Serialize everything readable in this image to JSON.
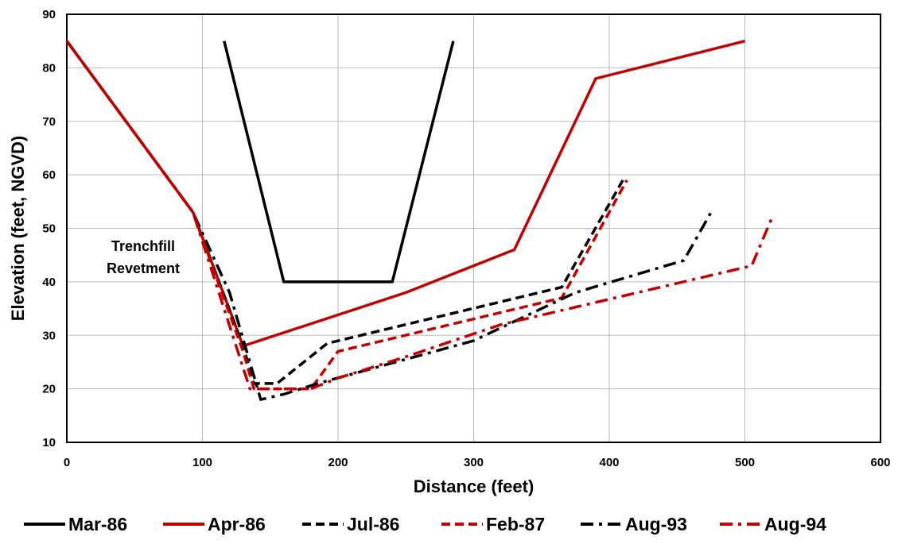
{
  "chart_data": {
    "type": "line",
    "title": "",
    "xlabel": "Distance (feet)",
    "ylabel": "Elevation (feet, NGVD)",
    "xlim": [
      0,
      600
    ],
    "ylim": [
      10,
      90
    ],
    "xticks": [
      "0",
      "100",
      "200",
      "300",
      "400",
      "500",
      "600"
    ],
    "yticks": [
      "10",
      "20",
      "30",
      "40",
      "50",
      "60",
      "70",
      "80",
      "90"
    ],
    "grid": true,
    "legend_position": "bottom",
    "annotation": [
      "Trenchfill",
      "Revetment"
    ],
    "series": [
      {
        "name": "Mar-86",
        "color": "#000000",
        "dash": "solid",
        "points": [
          [
            116,
            85
          ],
          [
            160,
            40
          ],
          [
            240,
            40
          ],
          [
            285,
            85
          ]
        ]
      },
      {
        "name": "Apr-86",
        "color": "#c00000",
        "dash": "solid",
        "points": [
          [
            0,
            85
          ],
          [
            93,
            53
          ],
          [
            130,
            28
          ],
          [
            250,
            38
          ],
          [
            330,
            46
          ],
          [
            390,
            78
          ],
          [
            500,
            85
          ]
        ]
      },
      {
        "name": "Jul-86",
        "color": "#000000",
        "dash": "dash",
        "points": [
          [
            0,
            85
          ],
          [
            93,
            53
          ],
          [
            130,
            28
          ],
          [
            138,
            21
          ],
          [
            155,
            21
          ],
          [
            192,
            28.5
          ],
          [
            365,
            39
          ],
          [
            410,
            59
          ]
        ]
      },
      {
        "name": "Feb-87",
        "color": "#c00000",
        "dash": "dash",
        "points": [
          [
            0,
            85
          ],
          [
            93,
            53
          ],
          [
            130,
            27
          ],
          [
            138,
            20
          ],
          [
            180,
            20
          ],
          [
            200,
            27
          ],
          [
            365,
            37
          ],
          [
            413,
            59
          ]
        ]
      },
      {
        "name": "Aug-93",
        "color": "#000000",
        "dash": "dashdot",
        "points": [
          [
            0,
            85
          ],
          [
            93,
            53
          ],
          [
            120,
            38
          ],
          [
            143,
            18
          ],
          [
            160,
            19
          ],
          [
            185,
            21
          ],
          [
            300,
            29
          ],
          [
            375,
            38
          ],
          [
            455,
            44
          ],
          [
            475,
            53
          ]
        ]
      },
      {
        "name": "Aug-94",
        "color": "#c00000",
        "dash": "dashdot",
        "points": [
          [
            0,
            85
          ],
          [
            93,
            53
          ],
          [
            135,
            20
          ],
          [
            180,
            20
          ],
          [
            200,
            22
          ],
          [
            250,
            26
          ],
          [
            320,
            32
          ],
          [
            505,
            43
          ],
          [
            520,
            52
          ]
        ]
      }
    ]
  }
}
